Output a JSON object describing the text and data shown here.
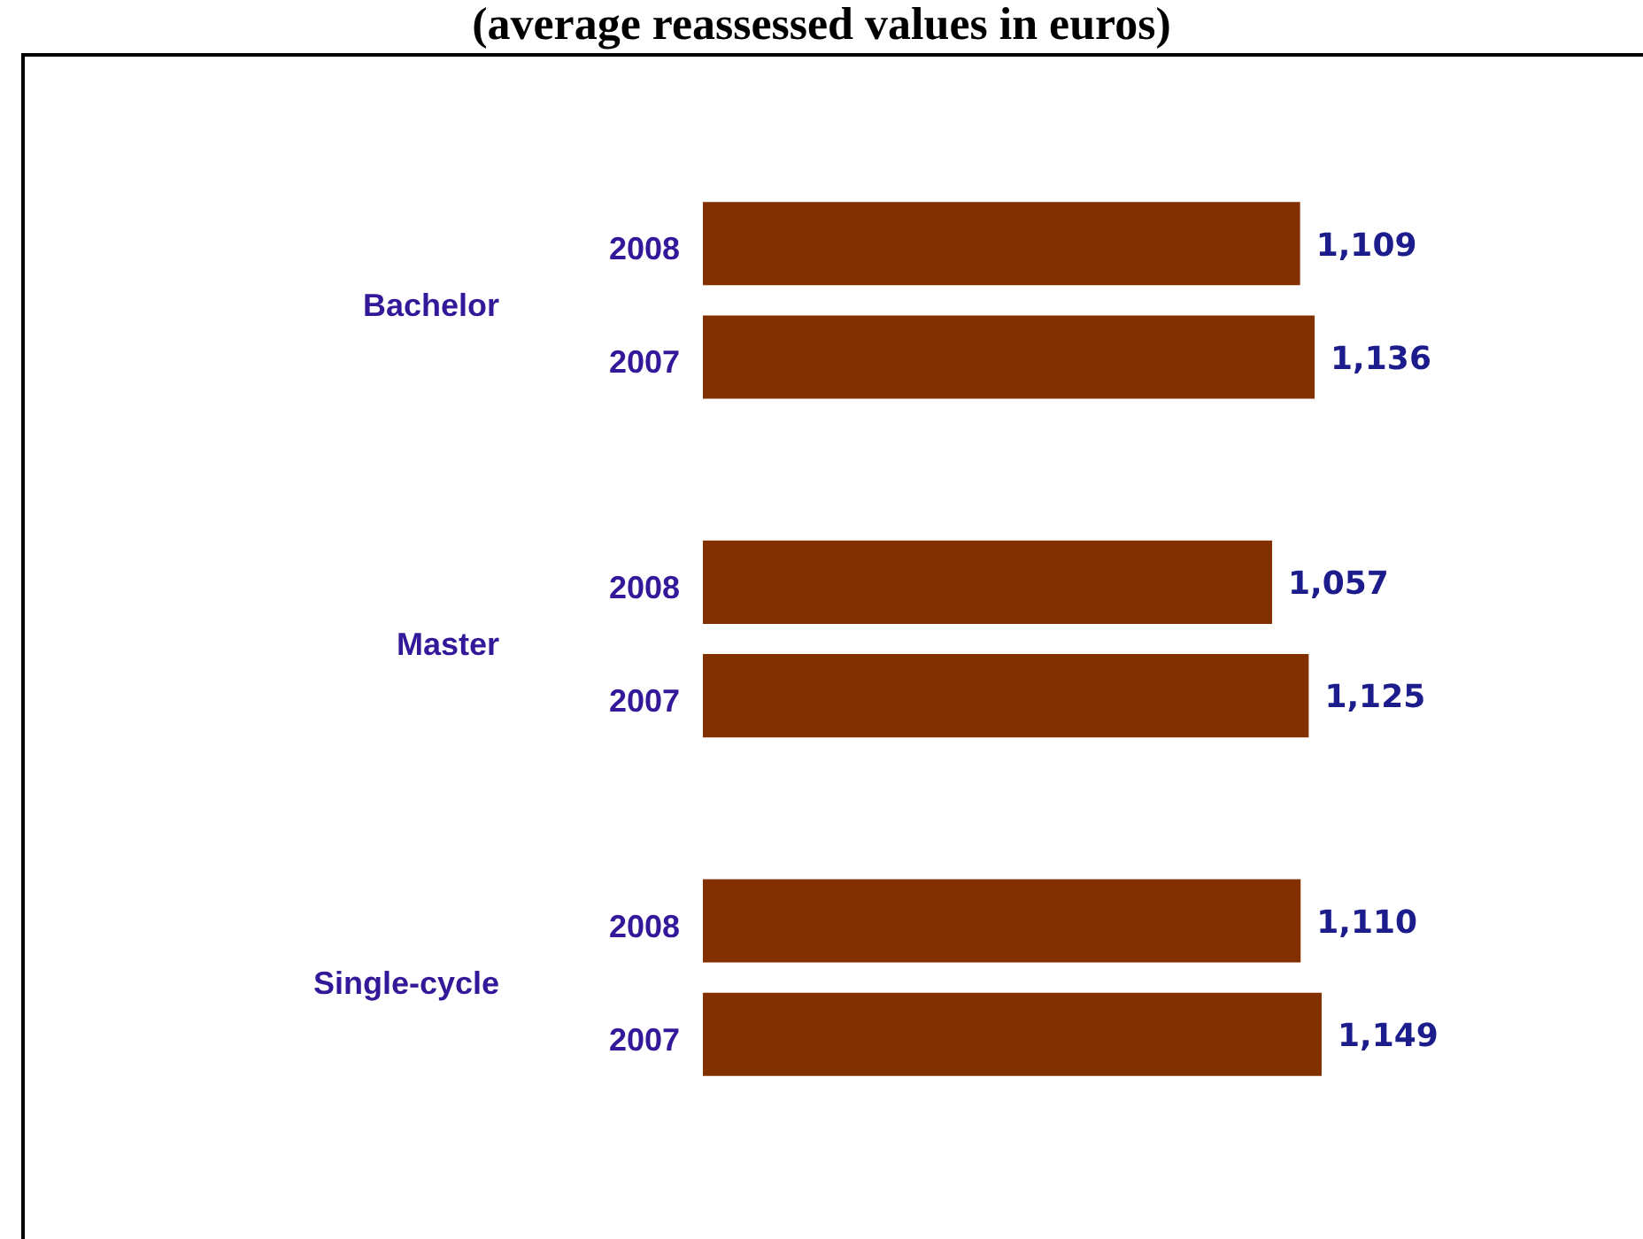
{
  "chart_data": {
    "type": "bar",
    "title": "(average reassessed values in euros)",
    "orientation": "horizontal",
    "categories": [
      "Bachelor",
      "Master",
      "Single-cycle"
    ],
    "series": [
      {
        "name": "2008",
        "color": "#833000",
        "values": [
          1109,
          1057,
          1110
        ],
        "value_labels": [
          "1,109",
          "1,057",
          "1,110"
        ]
      },
      {
        "name": "2007",
        "color": "#833000",
        "values": [
          1136,
          1125,
          1149
        ],
        "value_labels": [
          "1,136",
          "1,125",
          "1,149"
        ]
      }
    ],
    "tick_labels": "y",
    "legend": false
  }
}
